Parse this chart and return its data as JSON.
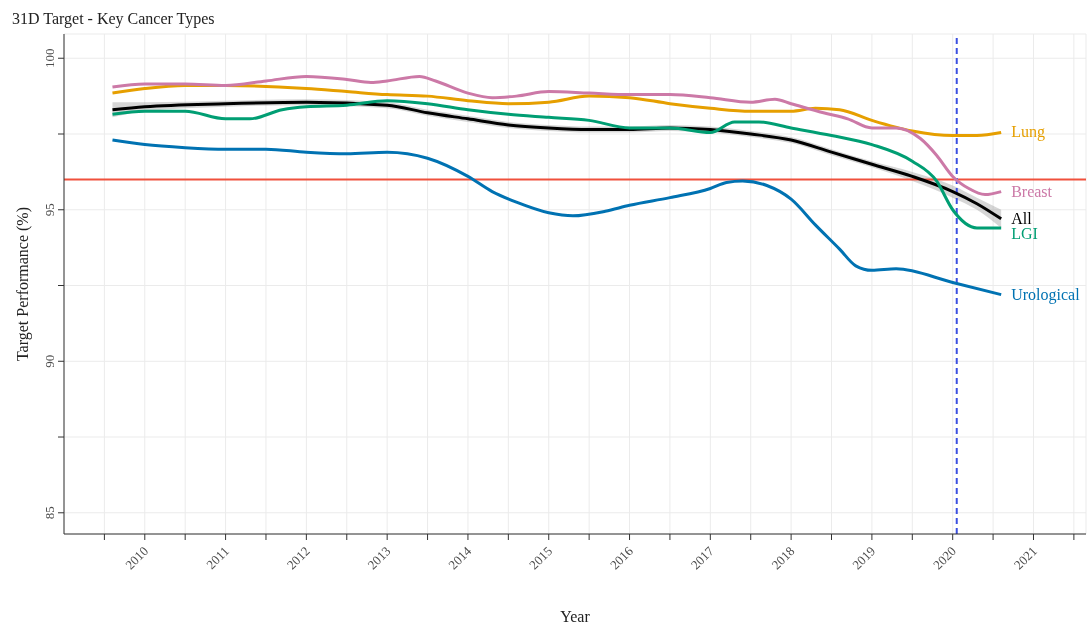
{
  "chart_data": {
    "type": "line",
    "title": "31D Target - Key Cancer Types",
    "xlabel": "Year",
    "ylabel": "Target Performance (%)",
    "xlim": [
      2009,
      2021.65
    ],
    "ylim": [
      84.3,
      100.8
    ],
    "xticks": [
      {
        "value": 2009.5,
        "label": null
      },
      2010,
      {
        "value": 2010.5,
        "label": null
      },
      2011,
      {
        "value": 2011.5,
        "label": null
      },
      2012,
      {
        "value": 2012.5,
        "label": null
      },
      2013,
      {
        "value": 2013.5,
        "label": null
      },
      2014,
      {
        "value": 2014.5,
        "label": null
      },
      2015,
      {
        "value": 2015.5,
        "label": null
      },
      2016,
      {
        "value": 2016.5,
        "label": null
      },
      2017,
      {
        "value": 2017.5,
        "label": null
      },
      2018,
      {
        "value": 2018.5,
        "label": null
      },
      2019,
      {
        "value": 2019.5,
        "label": null
      },
      2020,
      {
        "value": 2020.5,
        "label": null
      },
      2021,
      {
        "value": 2021.5,
        "label": null
      }
    ],
    "yticks": [
      85,
      {
        "value": 87.5,
        "label": null
      },
      90,
      {
        "value": 92.5,
        "label": null
      },
      95,
      {
        "value": 97.5,
        "label": null
      },
      100
    ],
    "grid": true,
    "legend": false,
    "marker": "none",
    "line_style": "solid",
    "ref_lines": [
      {
        "axis": "y",
        "value": 96,
        "label": null,
        "color": "#f0503c",
        "line_style": "solid"
      },
      {
        "axis": "x",
        "value": 2020.05,
        "label": null,
        "color": "#3b4fe0",
        "line_style": "dashed"
      }
    ],
    "series": [
      {
        "name": "Lung",
        "color": "#e69f00",
        "x": [
          2009.6,
          2010,
          2010.5,
          2011,
          2012,
          2012.5,
          2013,
          2013.5,
          2014,
          2014.5,
          2015,
          2015.5,
          2016,
          2016.5,
          2017,
          2017.5,
          2018,
          2018.3,
          2018.6,
          2019,
          2019.5,
          2020,
          2020.3,
          2020.6
        ],
        "values": [
          98.85,
          99.0,
          99.1,
          99.1,
          99.0,
          98.9,
          98.8,
          98.75,
          98.6,
          98.5,
          98.55,
          98.75,
          98.7,
          98.5,
          98.35,
          98.25,
          98.25,
          98.35,
          98.3,
          97.95,
          97.6,
          97.45,
          97.45,
          97.55
        ]
      },
      {
        "name": "Breast",
        "color": "#cc79a7",
        "x": [
          2009.6,
          2010,
          2010.5,
          2011,
          2011.5,
          2012,
          2012.5,
          2012.8,
          2013,
          2013.4,
          2013.6,
          2014,
          2014.3,
          2014.6,
          2015,
          2015.5,
          2016,
          2016.5,
          2017,
          2017.5,
          2017.8,
          2018,
          2018.4,
          2018.7,
          2019,
          2019.3,
          2019.6,
          2019.8,
          2020,
          2020.2,
          2020.4,
          2020.6
        ],
        "values": [
          99.05,
          99.15,
          99.15,
          99.1,
          99.25,
          99.4,
          99.3,
          99.2,
          99.25,
          99.4,
          99.25,
          98.85,
          98.7,
          98.75,
          98.9,
          98.85,
          98.8,
          98.8,
          98.7,
          98.55,
          98.65,
          98.5,
          98.2,
          98.0,
          97.7,
          97.7,
          97.35,
          96.8,
          96.1,
          95.7,
          95.5,
          95.6
        ]
      },
      {
        "name": "All",
        "color": "#000000",
        "x": [
          2009.6,
          2010,
          2011,
          2012,
          2013,
          2013.5,
          2014,
          2014.5,
          2015,
          2015.5,
          2016,
          2016.5,
          2017,
          2017.5,
          2018,
          2018.5,
          2019,
          2019.5,
          2020,
          2020.3,
          2020.6
        ],
        "values": [
          98.3,
          98.4,
          98.5,
          98.55,
          98.45,
          98.2,
          98.0,
          97.8,
          97.7,
          97.65,
          97.65,
          97.7,
          97.65,
          97.5,
          97.3,
          96.9,
          96.5,
          96.1,
          95.6,
          95.2,
          94.7
        ],
        "lower": [
          98.05,
          98.25,
          98.4,
          98.45,
          98.35,
          98.1,
          97.9,
          97.7,
          97.6,
          97.55,
          97.55,
          97.6,
          97.55,
          97.4,
          97.2,
          96.8,
          96.4,
          95.95,
          95.4,
          95.0,
          94.4
        ],
        "upper": [
          98.55,
          98.55,
          98.6,
          98.65,
          98.55,
          98.3,
          98.1,
          97.9,
          97.8,
          97.75,
          97.75,
          97.8,
          97.75,
          97.6,
          97.4,
          97.0,
          96.6,
          96.25,
          95.8,
          95.4,
          95.0
        ]
      },
      {
        "name": "LGI",
        "color": "#009e73",
        "x": [
          2009.6,
          2010,
          2010.5,
          2011,
          2011.3,
          2011.7,
          2012,
          2012.5,
          2013,
          2013.5,
          2014,
          2014.5,
          2015,
          2015.5,
          2016,
          2016.5,
          2017,
          2017.3,
          2017.6,
          2018,
          2018.5,
          2019,
          2019.5,
          2019.8,
          2020,
          2020.3,
          2020.6
        ],
        "values": [
          98.15,
          98.25,
          98.25,
          98.0,
          98.0,
          98.3,
          98.4,
          98.45,
          98.6,
          98.5,
          98.3,
          98.15,
          98.05,
          97.95,
          97.7,
          97.7,
          97.55,
          97.9,
          97.9,
          97.7,
          97.45,
          97.15,
          96.6,
          95.95,
          95.0,
          94.4,
          94.4
        ]
      },
      {
        "name": "Urological",
        "color": "#0072b2",
        "x": [
          2009.6,
          2010,
          2010.5,
          2011,
          2011.5,
          2012,
          2012.5,
          2013,
          2013.5,
          2014,
          2014.3,
          2014.6,
          2015,
          2015.3,
          2015.7,
          2016,
          2016.5,
          2017,
          2017.2,
          2017.4,
          2017.7,
          2018,
          2018.3,
          2018.6,
          2018.8,
          2019,
          2019.3,
          2020,
          2020.6
        ],
        "values": [
          97.3,
          97.15,
          97.05,
          97.0,
          97.0,
          96.9,
          96.85,
          96.9,
          96.7,
          96.1,
          95.6,
          95.25,
          94.9,
          94.8,
          94.95,
          95.15,
          95.4,
          95.7,
          95.9,
          95.95,
          95.8,
          95.35,
          94.5,
          93.7,
          93.15,
          93.0,
          93.05,
          92.6,
          92.2
        ]
      }
    ]
  }
}
